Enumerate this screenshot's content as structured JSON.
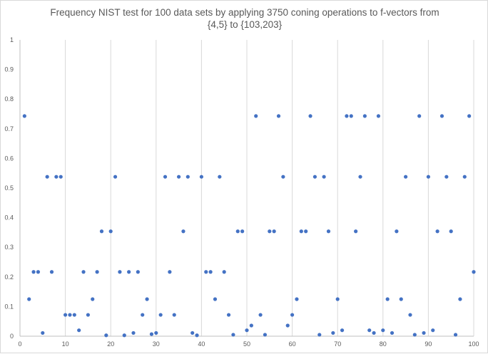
{
  "chart_data": {
    "type": "scatter",
    "title_lines": [
      "Frequency NIST test for 100 data sets by applying 3750 coning operations to f-vectors from",
      "{4,5} to {103,203}"
    ],
    "xlabel": "",
    "ylabel": "",
    "xlim": [
      0,
      100
    ],
    "ylim": [
      0,
      1
    ],
    "x_ticks": [
      "0",
      "10",
      "20",
      "30",
      "40",
      "50",
      "60",
      "70",
      "80",
      "90",
      "100"
    ],
    "y_ticks": [
      "0",
      "0.1",
      "0.2",
      "0.3",
      "0.4",
      "0.5",
      "0.6",
      "0.7",
      "0.8",
      "0.9",
      "1"
    ],
    "grid": "vertical",
    "marker_color": "#4472C4",
    "series": [
      {
        "x": [
          1,
          2,
          3,
          4,
          5,
          6,
          7,
          8,
          9,
          10,
          11,
          12,
          13,
          14,
          15,
          16,
          17,
          18,
          19,
          20,
          21,
          22,
          23,
          24,
          25,
          26,
          27,
          28,
          29,
          30,
          31,
          32,
          33,
          34,
          35,
          36,
          37,
          38,
          39,
          40,
          41,
          42,
          43,
          44,
          45,
          46,
          47,
          48,
          49,
          50,
          51,
          52,
          53,
          54,
          55,
          56,
          57,
          58,
          59,
          60,
          61,
          62,
          63,
          64,
          65,
          66,
          67,
          68,
          69,
          70,
          71,
          72,
          73,
          74,
          75,
          76,
          77,
          78,
          79,
          80,
          81,
          82,
          83,
          84,
          85,
          86,
          87,
          88,
          89,
          90,
          91,
          92,
          93,
          94,
          95,
          96,
          97,
          98,
          99,
          100
        ],
        "y": [
          0.743,
          0.125,
          0.217,
          0.217,
          0.011,
          0.538,
          0.217,
          0.538,
          0.538,
          0.072,
          0.072,
          0.072,
          0.02,
          0.217,
          0.072,
          0.125,
          0.217,
          0.354,
          0.003,
          0.354,
          0.538,
          0.217,
          0.003,
          0.217,
          0.011,
          0.217,
          0.072,
          0.125,
          0.007,
          0.011,
          0.072,
          0.538,
          0.217,
          0.072,
          0.538,
          0.354,
          0.538,
          0.011,
          0.003,
          0.538,
          0.217,
          0.217,
          0.125,
          0.538,
          0.217,
          0.072,
          0.005,
          0.354,
          0.354,
          0.02,
          0.036,
          0.743,
          0.072,
          0.005,
          0.354,
          0.354,
          0.743,
          0.538,
          0.036,
          0.072,
          0.125,
          0.354,
          0.354,
          0.743,
          0.538,
          0.005,
          0.538,
          0.354,
          0.011,
          0.125,
          0.02,
          0.743,
          0.743,
          0.354,
          0.538,
          0.743,
          0.02,
          0.011,
          0.743,
          0.02,
          0.125,
          0.011,
          0.354,
          0.125,
          0.538,
          0.072,
          0.005,
          0.743,
          0.011,
          0.538,
          0.02,
          0.354,
          0.743,
          0.538,
          0.354,
          0.005,
          0.125,
          0.538,
          0.743,
          0.217
        ]
      }
    ]
  }
}
